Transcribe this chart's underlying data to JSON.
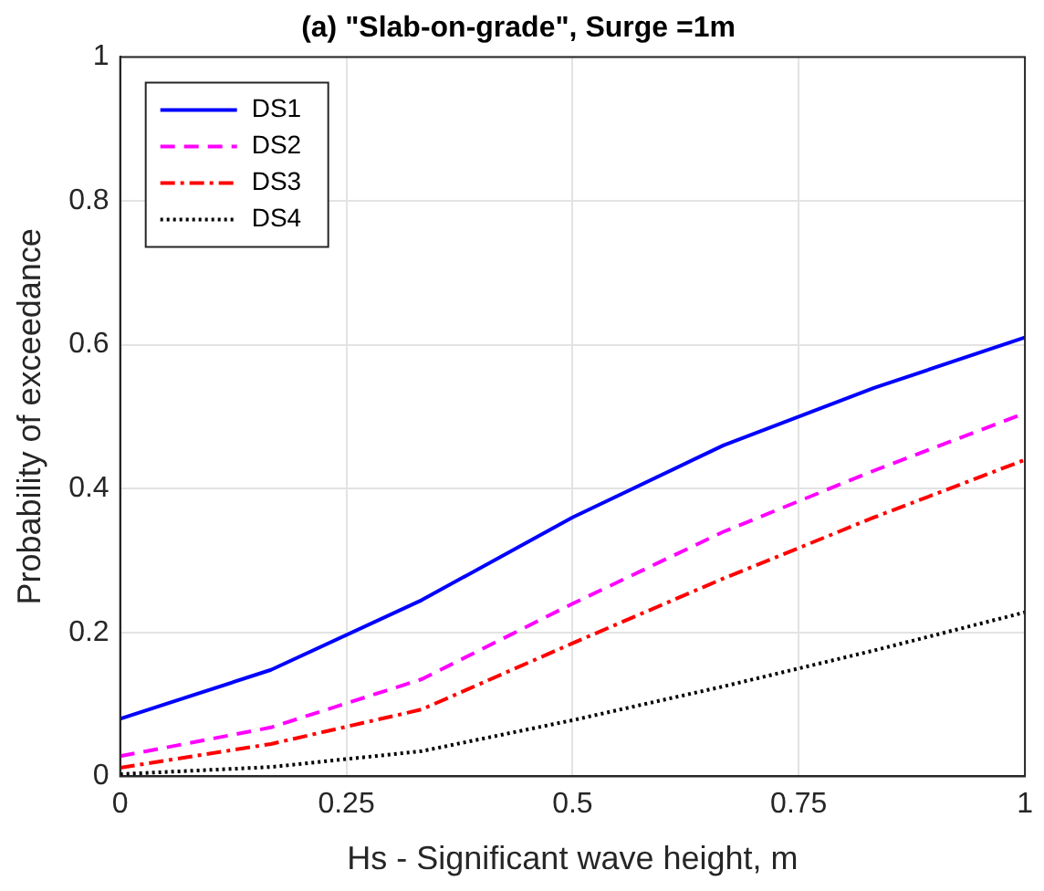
{
  "chart_data": {
    "type": "line",
    "title": "(a) \"Slab-on-grade\", Surge =1m",
    "xlabel": "Hs - Significant wave height, m",
    "ylabel": "Probability of exceedance",
    "x": [
      0,
      0.1667,
      0.3333,
      0.5,
      0.6667,
      0.8333,
      1
    ],
    "series": [
      {
        "name": "DS1",
        "color": "#0000ff",
        "line_style": "solid",
        "values": [
          0.08,
          0.148,
          0.245,
          0.36,
          0.46,
          0.54,
          0.61
        ]
      },
      {
        "name": "DS2",
        "color": "#ff00ff",
        "line_style": "dashed",
        "values": [
          0.028,
          0.068,
          0.135,
          0.24,
          0.34,
          0.425,
          0.505
        ]
      },
      {
        "name": "DS3",
        "color": "#ff0000",
        "line_style": "dashdot",
        "values": [
          0.012,
          0.045,
          0.093,
          0.185,
          0.275,
          0.36,
          0.44
        ]
      },
      {
        "name": "DS4",
        "color": "#000000",
        "line_style": "dotted",
        "values": [
          0.003,
          0.013,
          0.035,
          0.078,
          0.125,
          0.175,
          0.228
        ]
      }
    ],
    "xlim": [
      0,
      1
    ],
    "xticks": [
      0,
      0.25,
      0.5,
      0.75,
      1
    ],
    "ylim": [
      0,
      1
    ],
    "yticks": [
      0,
      0.2,
      0.4,
      0.6,
      0.8,
      1
    ],
    "grid": true,
    "legend": "top left",
    "marker": "none"
  }
}
